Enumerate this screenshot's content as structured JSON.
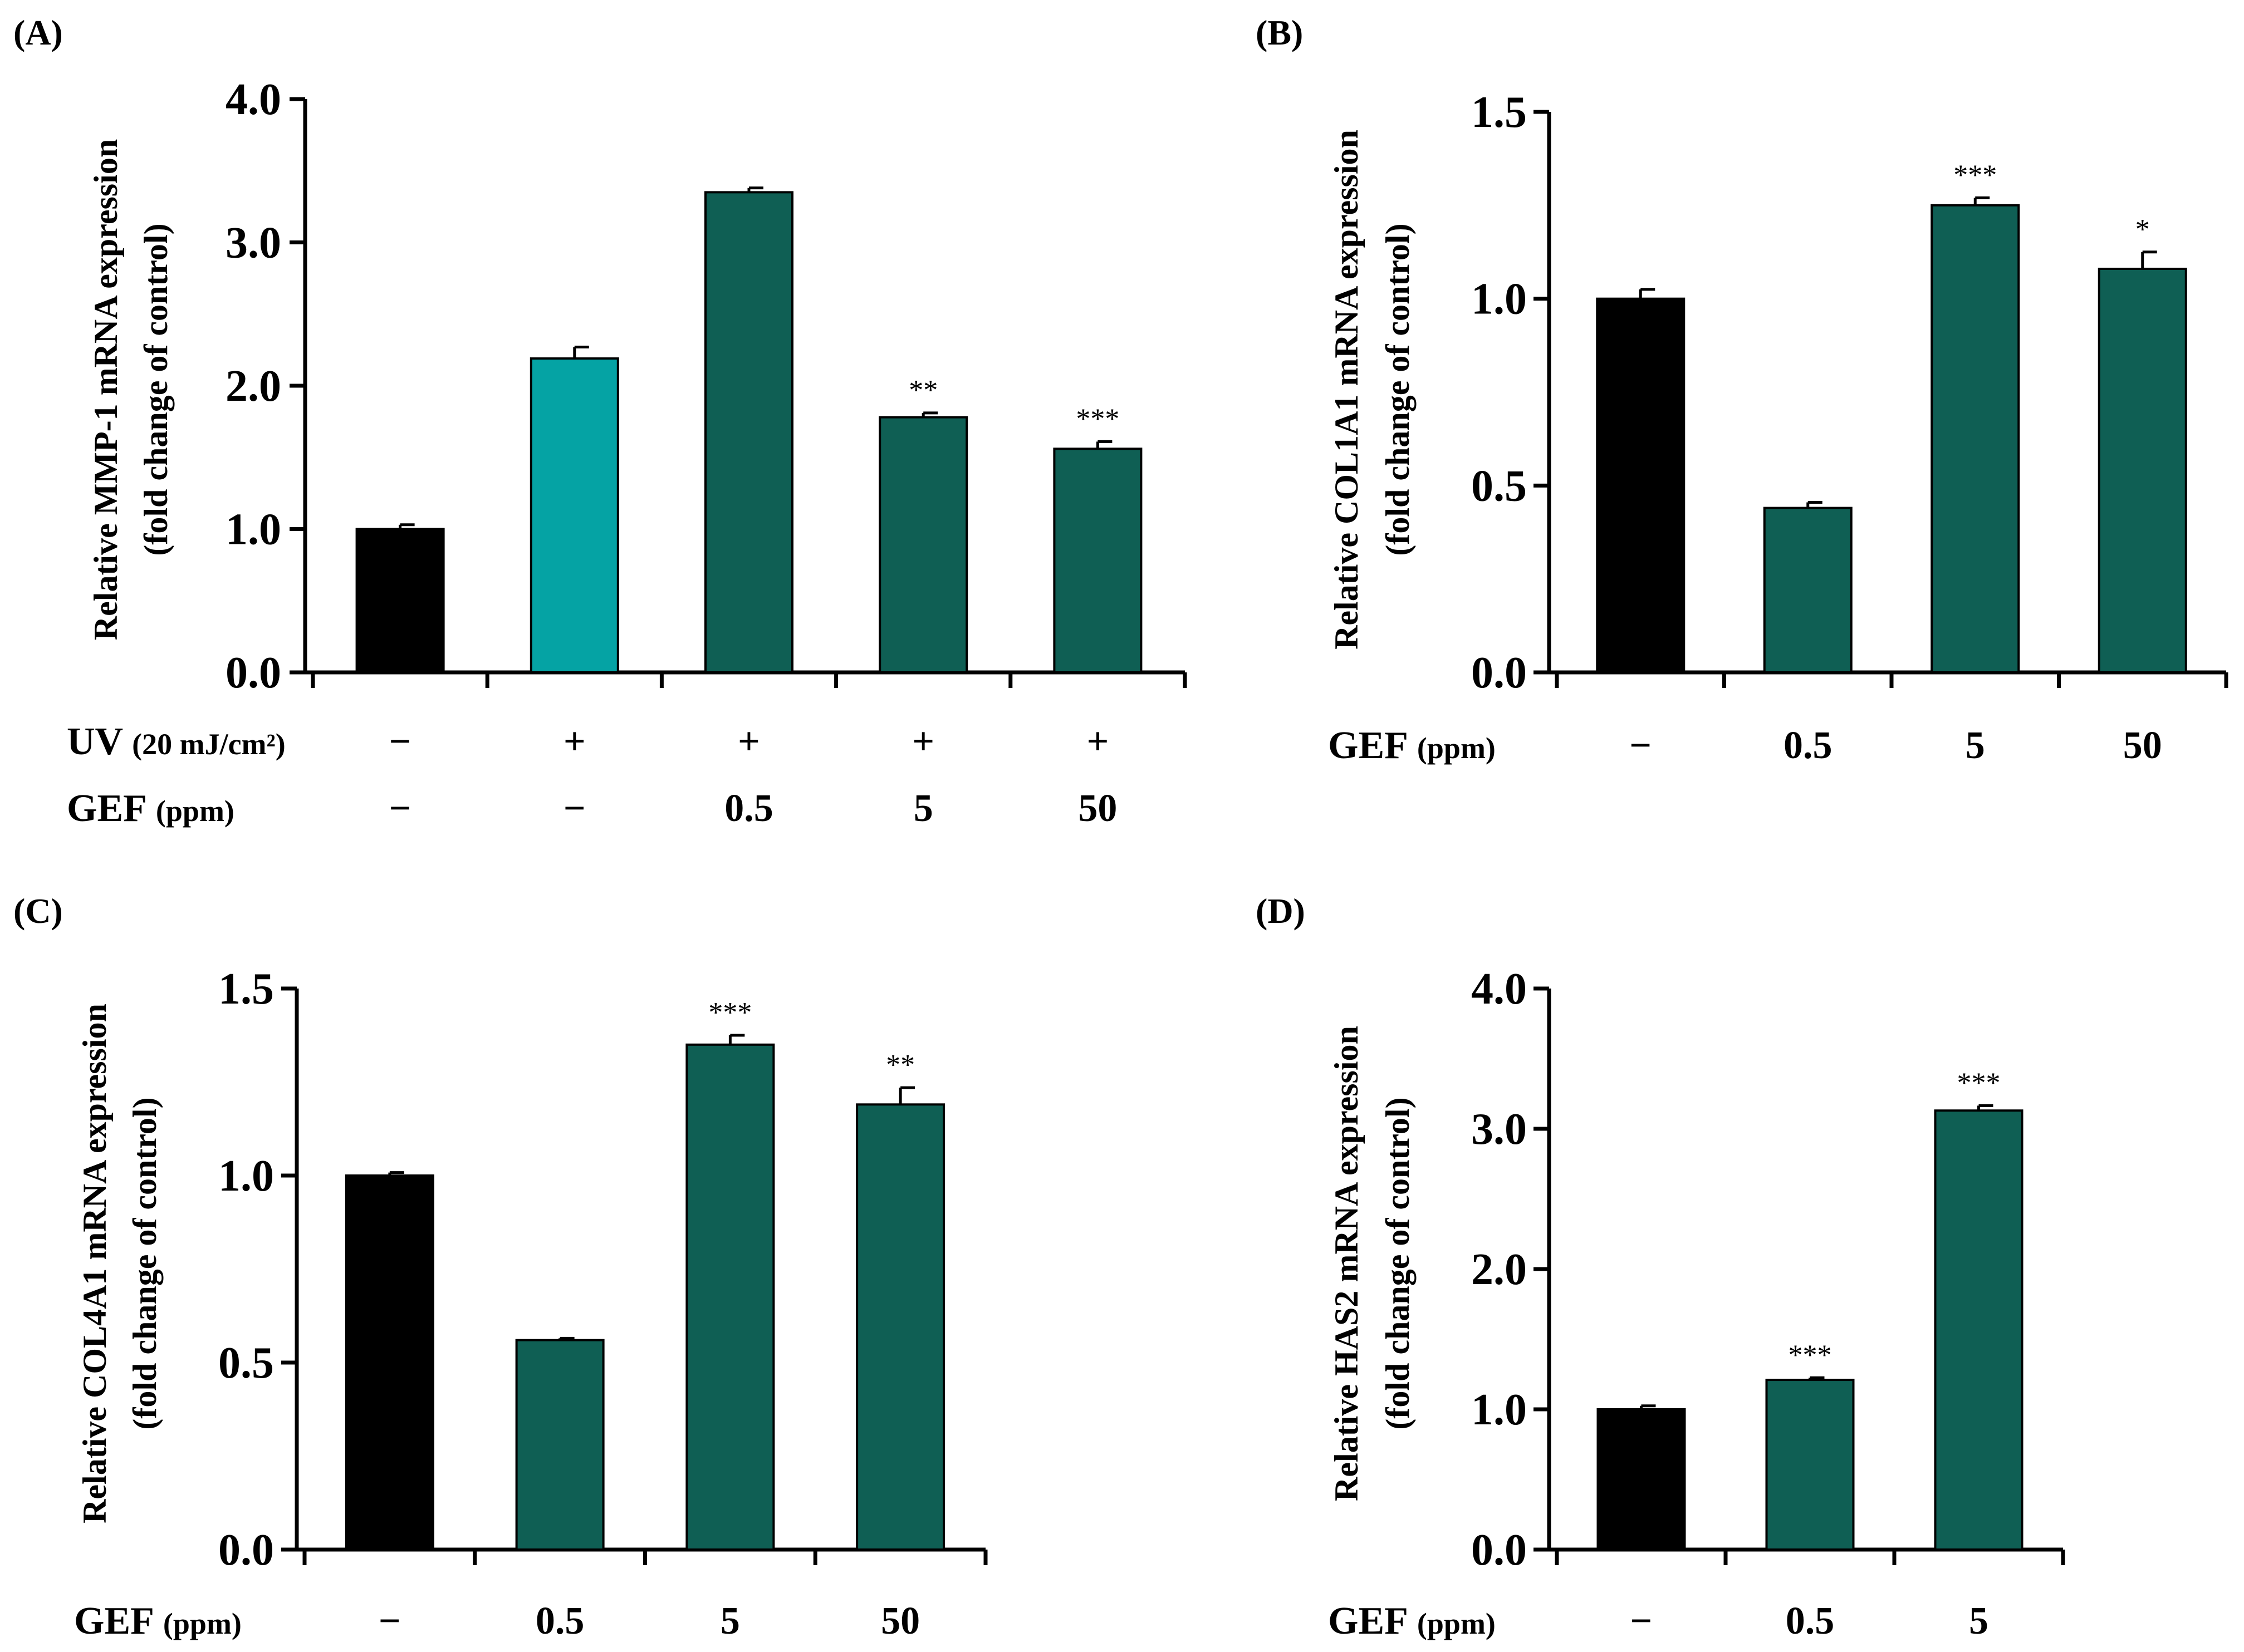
{
  "colors": {
    "control": "#000000",
    "uv": "#05a3a4",
    "gef": "#0f5f54"
  },
  "chart_data": [
    {
      "type": "bar",
      "panel": "(A)",
      "ylabel_line1": "Relative MMP-1 mRNA expression",
      "ylabel_line2": "(fold change of control)",
      "ylim": [
        0,
        4
      ],
      "yticks": [
        "0.0",
        "1.0",
        "2.0",
        "3.0",
        "4.0"
      ],
      "ytick_values": [
        0,
        1,
        2,
        3,
        4
      ],
      "categories": [
        "control",
        "UV",
        "UV + GEF 0.5",
        "UV + GEF 5",
        "UV + GEF 50"
      ],
      "values": [
        1.0,
        2.19,
        3.35,
        1.78,
        1.56
      ],
      "errors": [
        0.03,
        0.08,
        0.03,
        0.03,
        0.05
      ],
      "color_keys": [
        "control",
        "uv",
        "gef",
        "gef",
        "gef"
      ],
      "significance": [
        "",
        "",
        "",
        "**",
        "***"
      ],
      "condition_rows": [
        {
          "name": "UV",
          "unit": "(20 mJ/cm²)",
          "values": [
            "−",
            "+",
            "+",
            "+",
            "+"
          ]
        },
        {
          "name": "GEF",
          "unit": "(ppm)",
          "values": [
            "−",
            "−",
            "0.5",
            "5",
            "50"
          ]
        }
      ]
    },
    {
      "type": "bar",
      "panel": "(B)",
      "ylabel_line1": "Relative COL1A1 mRNA expression",
      "ylabel_line2": "(fold change of control)",
      "ylim": [
        0,
        1.5
      ],
      "yticks": [
        "0.0",
        "0.5",
        "1.0",
        "1.5"
      ],
      "ytick_values": [
        0,
        0.5,
        1.0,
        1.5
      ],
      "categories": [
        "−",
        "0.5",
        "5",
        "50"
      ],
      "values": [
        1.0,
        0.44,
        1.25,
        1.08
      ],
      "errors": [
        0.025,
        0.015,
        0.02,
        0.045
      ],
      "color_keys": [
        "control",
        "gef",
        "gef",
        "gef"
      ],
      "significance": [
        "",
        "",
        "***",
        "*"
      ],
      "condition_rows": [
        {
          "name": "GEF",
          "unit": "(ppm)",
          "values": [
            "−",
            "0.5",
            "5",
            "50"
          ]
        }
      ]
    },
    {
      "type": "bar",
      "panel": "(C)",
      "ylabel_line1": "Relative COL4A1 mRNA expression",
      "ylabel_line2": "(fold change of control)",
      "ylim": [
        0,
        1.5
      ],
      "yticks": [
        "0.0",
        "0.5",
        "1.0",
        "1.5"
      ],
      "ytick_values": [
        0,
        0.5,
        1.0,
        1.5
      ],
      "categories": [
        "−",
        "0.5",
        "5",
        "50"
      ],
      "values": [
        1.0,
        0.56,
        1.35,
        1.19
      ],
      "errors": [
        0.008,
        0.005,
        0.025,
        0.045
      ],
      "color_keys": [
        "control",
        "gef",
        "gef",
        "gef"
      ],
      "significance": [
        "",
        "",
        "***",
        "**"
      ],
      "condition_rows": [
        {
          "name": "GEF",
          "unit": "(ppm)",
          "values": [
            "−",
            "0.5",
            "5",
            "50"
          ]
        }
      ]
    },
    {
      "type": "bar",
      "panel": "(D)",
      "ylabel_line1": "Relative HAS2 mRNA expression",
      "ylabel_line2": "(fold change of control)",
      "ylim": [
        0,
        4
      ],
      "yticks": [
        "0.0",
        "1.0",
        "2.0",
        "3.0",
        "4.0"
      ],
      "ytick_values": [
        0,
        1,
        2,
        3,
        4
      ],
      "categories": [
        "−",
        "0.5",
        "5"
      ],
      "values": [
        1.0,
        1.21,
        3.13
      ],
      "errors": [
        0.025,
        0.015,
        0.035
      ],
      "color_keys": [
        "control",
        "gef",
        "gef"
      ],
      "significance": [
        "",
        "***",
        "***"
      ],
      "condition_rows": [
        {
          "name": "GEF",
          "unit": "(ppm)",
          "values": [
            "−",
            "0.5",
            "5"
          ]
        }
      ]
    }
  ]
}
